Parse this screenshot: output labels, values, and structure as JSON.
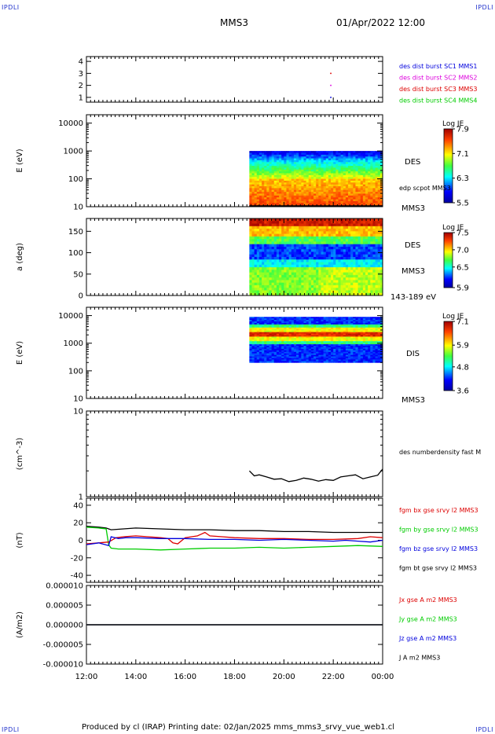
{
  "corners": {
    "tl": "IPDLI",
    "tr": "IPDLI",
    "bl": "IPDLI",
    "br": "IPDLI"
  },
  "header": {
    "spacecraft": "MMS3",
    "datetime": "01/Apr/2022 12:00"
  },
  "footer": {
    "text": "Produced by cl (IRAP)   Printing date: 02/Jan/2025   mms_mms3_srvy_vue_web1.cl"
  },
  "time_axis": {
    "ticks": [
      "12:00",
      "14:00",
      "16:00",
      "18:00",
      "20:00",
      "22:00",
      "00:00"
    ]
  },
  "colors": {
    "blue": "#0000dd",
    "magenta": "#dd00dd",
    "red": "#dd0000",
    "green": "#00cc00",
    "black": "#000000"
  },
  "chart_data": [
    {
      "type": "scatter",
      "panel": "burst",
      "yticks": [
        "1",
        "2",
        "3",
        "4"
      ],
      "ylim": [
        0.6,
        4.4
      ],
      "legend": [
        {
          "text": "des dist burst SC1 MMS1",
          "color": "#0000dd"
        },
        {
          "text": "des dist burst SC2 MMS2",
          "color": "#dd00dd"
        },
        {
          "text": "des dist burst SC3 MMS3",
          "color": "#dd0000"
        },
        {
          "text": "des dist burst SC4 MMS4",
          "color": "#00cc00"
        }
      ],
      "points": [
        {
          "t": 21.9,
          "y": 3,
          "color": "#dd0000"
        },
        {
          "t": 21.9,
          "y": 2,
          "color": "#dd00dd"
        },
        {
          "t": 21.9,
          "y": 1,
          "color": "#0000dd"
        }
      ]
    },
    {
      "type": "heatmap",
      "panel": "des_energy",
      "ylabel": "E (eV)",
      "yticks": [
        "10",
        "100",
        "1000",
        "10000"
      ],
      "ylim": [
        10,
        20000
      ],
      "yscale": "log",
      "data_start": 18.6,
      "data_end": 24.0,
      "label": "DES",
      "bottom_label": "MMS3",
      "overlay_label": "edp scpot MMS3",
      "colorbar": {
        "title": "Log JE",
        "ticks": [
          "7.9",
          "7.1",
          "6.3",
          "5.5"
        ],
        "min": 5.5,
        "max": 7.9
      }
    },
    {
      "type": "heatmap",
      "panel": "des_pitch",
      "ylabel": "a (deg)",
      "yticks": [
        "0",
        "50",
        "100",
        "150"
      ],
      "ylim": [
        0,
        180
      ],
      "data_start": 18.6,
      "data_end": 24.0,
      "label": "DES",
      "sub_label": "MMS3",
      "bottom_label": "143-189 eV",
      "colorbar": {
        "title": "Log JE",
        "ticks": [
          "7.5",
          "7.0",
          "6.5",
          "5.9"
        ],
        "min": 5.9,
        "max": 7.5
      }
    },
    {
      "type": "heatmap",
      "panel": "dis_energy",
      "ylabel": "E (eV)",
      "yticks": [
        "10",
        "100",
        "1000",
        "10000"
      ],
      "ylim": [
        10,
        20000
      ],
      "yscale": "log",
      "data_start": 18.6,
      "data_end": 24.0,
      "label": "DIS",
      "bottom_label": "MMS3",
      "colorbar": {
        "title": "Log JE",
        "ticks": [
          "7.1",
          "5.9",
          "4.8",
          "3.6"
        ],
        "min": 3.6,
        "max": 7.1
      }
    },
    {
      "type": "line",
      "panel": "density",
      "ylabel": "(cm^-3)",
      "yticks": [
        "1",
        "10"
      ],
      "ylim": [
        1,
        10
      ],
      "yscale": "log",
      "series": [
        {
          "name": "des numberdensity fast M",
          "color": "#000000",
          "t": [
            18.6,
            18.8,
            19.0,
            19.3,
            19.6,
            19.9,
            20.2,
            20.5,
            20.8,
            21.1,
            21.4,
            21.7,
            22.0,
            22.3,
            22.6,
            22.9,
            23.2,
            23.5,
            23.8,
            24.0
          ],
          "y": [
            2.0,
            1.75,
            1.8,
            1.7,
            1.6,
            1.62,
            1.5,
            1.55,
            1.65,
            1.6,
            1.52,
            1.58,
            1.55,
            1.7,
            1.75,
            1.8,
            1.62,
            1.7,
            1.78,
            2.1
          ]
        }
      ]
    },
    {
      "type": "line",
      "panel": "fgm",
      "ylabel": "(nT)",
      "yticks": [
        "-40",
        "-20",
        "0",
        "20",
        "40"
      ],
      "ylim": [
        -48,
        48
      ],
      "series": [
        {
          "name": "fgm bx gse srvy l2 MMS3",
          "color": "#dd0000",
          "t": [
            12.0,
            12.5,
            12.9,
            13.2,
            13.5,
            14.0,
            14.5,
            15.0,
            15.3,
            15.5,
            15.7,
            16.0,
            16.5,
            16.8,
            17.0,
            17.5,
            18.0,
            19.0,
            20.0,
            21.0,
            22.0,
            23.0,
            23.5,
            24.0
          ],
          "y": [
            -4,
            -3,
            -2,
            3,
            4,
            5,
            4,
            3,
            2,
            -3,
            -4,
            3,
            5,
            9,
            5,
            4,
            3,
            2,
            2,
            1,
            1,
            2,
            4,
            3
          ]
        },
        {
          "name": "fgm by gse srvy l2 MMS3",
          "color": "#00cc00",
          "t": [
            12.0,
            12.5,
            12.8,
            12.9,
            13.0,
            13.3,
            14.0,
            15.0,
            16.0,
            17.0,
            18.0,
            19.0,
            20.0,
            21.0,
            22.0,
            23.0,
            24.0
          ],
          "y": [
            15,
            14,
            13,
            -5,
            -9,
            -10,
            -10,
            -11,
            -10,
            -9,
            -9,
            -8,
            -9,
            -8,
            -7,
            -6,
            -7
          ]
        },
        {
          "name": "fgm bz gse srvy l2 MMS3",
          "color": "#0000dd",
          "t": [
            12.0,
            12.5,
            12.9,
            13.0,
            13.3,
            13.6,
            14.0,
            15.0,
            16.0,
            17.0,
            18.0,
            19.0,
            20.0,
            21.0,
            22.0,
            22.5,
            23.0,
            23.5,
            24.0
          ],
          "y": [
            -5,
            -3,
            -6,
            4,
            2,
            3,
            3,
            2,
            2,
            1,
            1,
            0,
            1,
            0,
            -1,
            0,
            -1,
            -2,
            0
          ]
        },
        {
          "name": "fgm bt gse srvy l2 MMS3",
          "color": "#000000",
          "t": [
            12.0,
            12.5,
            12.8,
            13.0,
            13.5,
            14.0,
            15.0,
            16.0,
            17.0,
            18.0,
            19.0,
            20.0,
            21.0,
            22.0,
            23.0,
            24.0
          ],
          "y": [
            16,
            15,
            14,
            12,
            13,
            14,
            13,
            12,
            12,
            11,
            11,
            10,
            10,
            9,
            9,
            9
          ]
        }
      ]
    },
    {
      "type": "line",
      "panel": "current",
      "ylabel": "(A/m2)",
      "yticks": [
        "0.000010",
        "0.000005",
        "0.000000",
        "-0.000005",
        "-0.000010"
      ],
      "ylim": [
        -1e-05,
        1e-05
      ],
      "series": [
        {
          "name": "Jx gse A m2 MMS3",
          "color": "#dd0000",
          "t": [
            12.0,
            24.0
          ],
          "y": [
            0,
            0
          ]
        },
        {
          "name": "Jy gse A m2 MMS3",
          "color": "#00cc00",
          "t": [
            12.0,
            24.0
          ],
          "y": [
            0,
            0
          ]
        },
        {
          "name": "Jz gse A m2 MMS3",
          "color": "#0000dd",
          "t": [
            12.0,
            24.0
          ],
          "y": [
            0,
            0
          ]
        },
        {
          "name": "J A m2 MMS3",
          "color": "#000000",
          "t": [
            12.0,
            24.0
          ],
          "y": [
            0,
            0
          ]
        }
      ]
    }
  ]
}
